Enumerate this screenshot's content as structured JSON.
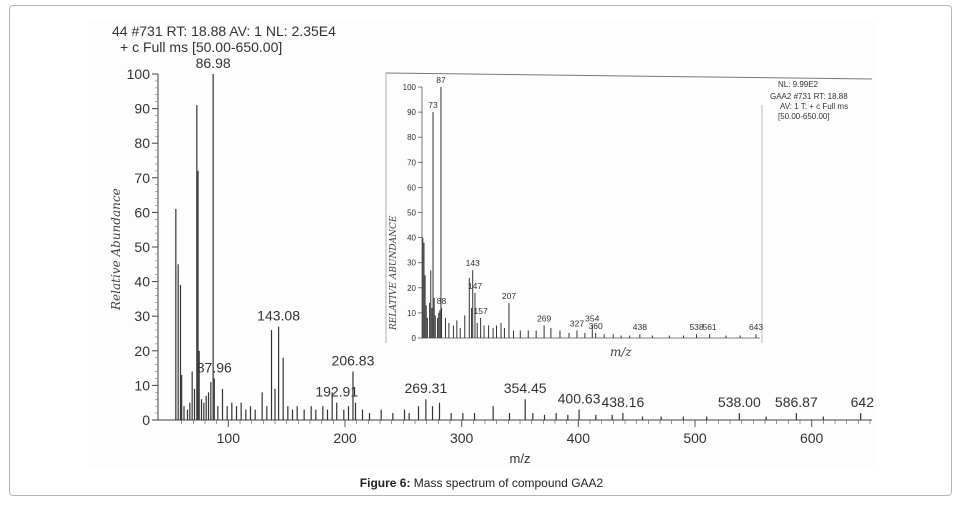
{
  "figure": {
    "caption_label": "Figure 6:",
    "caption_text": " Mass spectrum of compound GAA2"
  },
  "chart_data": [
    {
      "type": "bar",
      "header_line1": "44 #731   RT: 18.88   AV: 1   NL: 2.35E4",
      "header_line2": "+ c Full ms [50.00-650.00]",
      "xlabel": "m/z",
      "ylabel": "Relative Abundance",
      "xlim": [
        50,
        650
      ],
      "ylim": [
        0,
        100
      ],
      "xticks": [
        100,
        200,
        300,
        400,
        500,
        600
      ],
      "yticks": [
        0,
        10,
        20,
        30,
        40,
        50,
        60,
        70,
        80,
        90,
        100
      ],
      "peaks": [
        {
          "mz": 55,
          "rel": 61
        },
        {
          "mz": 57,
          "rel": 45
        },
        {
          "mz": 59,
          "rel": 39
        },
        {
          "mz": 60,
          "rel": 13
        },
        {
          "mz": 62,
          "rel": 4
        },
        {
          "mz": 65,
          "rel": 3
        },
        {
          "mz": 67,
          "rel": 5
        },
        {
          "mz": 69,
          "rel": 14
        },
        {
          "mz": 71,
          "rel": 9
        },
        {
          "mz": 73,
          "rel": 91
        },
        {
          "mz": 74,
          "rel": 72
        },
        {
          "mz": 75,
          "rel": 20
        },
        {
          "mz": 77,
          "rel": 6
        },
        {
          "mz": 79,
          "rel": 5
        },
        {
          "mz": 81,
          "rel": 7
        },
        {
          "mz": 83,
          "rel": 8
        },
        {
          "mz": 85,
          "rel": 11
        },
        {
          "mz": 86.98,
          "rel": 100
        },
        {
          "mz": 87.96,
          "rel": 12
        },
        {
          "mz": 91,
          "rel": 4
        },
        {
          "mz": 95,
          "rel": 9
        },
        {
          "mz": 99,
          "rel": 4
        },
        {
          "mz": 103,
          "rel": 5
        },
        {
          "mz": 107,
          "rel": 4
        },
        {
          "mz": 111,
          "rel": 5
        },
        {
          "mz": 115,
          "rel": 3
        },
        {
          "mz": 119,
          "rel": 4
        },
        {
          "mz": 123,
          "rel": 3
        },
        {
          "mz": 129,
          "rel": 8
        },
        {
          "mz": 133,
          "rel": 4
        },
        {
          "mz": 137,
          "rel": 26
        },
        {
          "mz": 140,
          "rel": 9
        },
        {
          "mz": 143.08,
          "rel": 27
        },
        {
          "mz": 147,
          "rel": 18
        },
        {
          "mz": 151,
          "rel": 4
        },
        {
          "mz": 155,
          "rel": 3
        },
        {
          "mz": 159,
          "rel": 4
        },
        {
          "mz": 165,
          "rel": 3
        },
        {
          "mz": 171,
          "rel": 4
        },
        {
          "mz": 175,
          "rel": 3
        },
        {
          "mz": 181,
          "rel": 4
        },
        {
          "mz": 185,
          "rel": 3
        },
        {
          "mz": 189,
          "rel": 8
        },
        {
          "mz": 192.91,
          "rel": 5
        },
        {
          "mz": 199,
          "rel": 3
        },
        {
          "mz": 203,
          "rel": 4
        },
        {
          "mz": 206.83,
          "rel": 14
        },
        {
          "mz": 209,
          "rel": 5
        },
        {
          "mz": 215,
          "rel": 3
        },
        {
          "mz": 221,
          "rel": 2
        },
        {
          "mz": 231,
          "rel": 3
        },
        {
          "mz": 241,
          "rel": 2
        },
        {
          "mz": 251,
          "rel": 3
        },
        {
          "mz": 255,
          "rel": 2
        },
        {
          "mz": 263,
          "rel": 4
        },
        {
          "mz": 269.31,
          "rel": 6
        },
        {
          "mz": 275,
          "rel": 4
        },
        {
          "mz": 281,
          "rel": 5
        },
        {
          "mz": 291,
          "rel": 2
        },
        {
          "mz": 301,
          "rel": 2
        },
        {
          "mz": 311,
          "rel": 2
        },
        {
          "mz": 327,
          "rel": 4
        },
        {
          "mz": 341,
          "rel": 2
        },
        {
          "mz": 354.45,
          "rel": 6
        },
        {
          "mz": 361,
          "rel": 2
        },
        {
          "mz": 371,
          "rel": 1.5
        },
        {
          "mz": 381,
          "rel": 2
        },
        {
          "mz": 391,
          "rel": 1.5
        },
        {
          "mz": 400.63,
          "rel": 3
        },
        {
          "mz": 415,
          "rel": 1.5
        },
        {
          "mz": 429,
          "rel": 1.5
        },
        {
          "mz": 438.16,
          "rel": 2
        },
        {
          "mz": 455,
          "rel": 1
        },
        {
          "mz": 471,
          "rel": 1
        },
        {
          "mz": 490,
          "rel": 1
        },
        {
          "mz": 510,
          "rel": 1
        },
        {
          "mz": 538.0,
          "rel": 2
        },
        {
          "mz": 561,
          "rel": 1
        },
        {
          "mz": 586.87,
          "rel": 2
        },
        {
          "mz": 610,
          "rel": 1
        },
        {
          "mz": 642,
          "rel": 2
        }
      ],
      "annotations": [
        {
          "mz": 86.98,
          "rel": 100,
          "label": "86.98"
        },
        {
          "mz": 87.96,
          "rel": 12,
          "label": "87.96"
        },
        {
          "mz": 143.08,
          "rel": 27,
          "label": "143.08"
        },
        {
          "mz": 192.91,
          "rel": 5,
          "label": "192.91"
        },
        {
          "mz": 206.83,
          "rel": 14,
          "label": "206.83"
        },
        {
          "mz": 269.31,
          "rel": 6,
          "label": "269.31"
        },
        {
          "mz": 354.45,
          "rel": 6,
          "label": "354.45"
        },
        {
          "mz": 400.63,
          "rel": 3,
          "label": "400.63"
        },
        {
          "mz": 438.16,
          "rel": 2,
          "label": "438.16"
        },
        {
          "mz": 538.0,
          "rel": 2,
          "label": "538.00"
        },
        {
          "mz": 586.87,
          "rel": 2,
          "label": "586.87"
        },
        {
          "mz": 642,
          "rel": 2,
          "label": "642"
        }
      ]
    },
    {
      "type": "bar",
      "header_line1": "NL: 9.99E2",
      "header_line2": "GAA2 #731  RT: 18.88",
      "header_line3": "AV: 1 T: + c Full ms",
      "header_line4": "[50.00-650.00]",
      "xlabel": "m/z",
      "ylabel": "RELATIVE ABUNDANCE",
      "xlim": [
        50,
        650
      ],
      "ylim": [
        0,
        100
      ],
      "yticks": [
        0,
        10,
        20,
        30,
        40,
        50,
        60,
        70,
        80,
        90,
        100
      ],
      "peaks": [
        {
          "mz": 55,
          "rel": 40
        },
        {
          "mz": 57,
          "rel": 38
        },
        {
          "mz": 59,
          "rel": 25
        },
        {
          "mz": 61,
          "rel": 13
        },
        {
          "mz": 63,
          "rel": 8
        },
        {
          "mz": 67,
          "rel": 14
        },
        {
          "mz": 69,
          "rel": 27
        },
        {
          "mz": 71,
          "rel": 12
        },
        {
          "mz": 73,
          "rel": 90
        },
        {
          "mz": 75,
          "rel": 16
        },
        {
          "mz": 77,
          "rel": 9
        },
        {
          "mz": 81,
          "rel": 8
        },
        {
          "mz": 83,
          "rel": 10
        },
        {
          "mz": 85,
          "rel": 11
        },
        {
          "mz": 87,
          "rel": 100
        },
        {
          "mz": 88,
          "rel": 12
        },
        {
          "mz": 95,
          "rel": 8
        },
        {
          "mz": 101,
          "rel": 6
        },
        {
          "mz": 109,
          "rel": 5
        },
        {
          "mz": 115,
          "rel": 7
        },
        {
          "mz": 121,
          "rel": 4
        },
        {
          "mz": 129,
          "rel": 9
        },
        {
          "mz": 137,
          "rel": 24
        },
        {
          "mz": 141,
          "rel": 12
        },
        {
          "mz": 143,
          "rel": 27
        },
        {
          "mz": 147,
          "rel": 18
        },
        {
          "mz": 151,
          "rel": 6
        },
        {
          "mz": 157,
          "rel": 8
        },
        {
          "mz": 163,
          "rel": 5
        },
        {
          "mz": 171,
          "rel": 5
        },
        {
          "mz": 179,
          "rel": 4
        },
        {
          "mz": 185,
          "rel": 5
        },
        {
          "mz": 193,
          "rel": 6
        },
        {
          "mz": 199,
          "rel": 4
        },
        {
          "mz": 207,
          "rel": 14
        },
        {
          "mz": 215,
          "rel": 3
        },
        {
          "mz": 227,
          "rel": 3
        },
        {
          "mz": 241,
          "rel": 3
        },
        {
          "mz": 255,
          "rel": 3
        },
        {
          "mz": 269,
          "rel": 5
        },
        {
          "mz": 281,
          "rel": 4
        },
        {
          "mz": 297,
          "rel": 3
        },
        {
          "mz": 313,
          "rel": 2
        },
        {
          "mz": 327,
          "rel": 3
        },
        {
          "mz": 341,
          "rel": 2
        },
        {
          "mz": 354,
          "rel": 5
        },
        {
          "mz": 360,
          "rel": 2
        },
        {
          "mz": 375,
          "rel": 1.5
        },
        {
          "mz": 391,
          "rel": 1.5
        },
        {
          "mz": 405,
          "rel": 1
        },
        {
          "mz": 420,
          "rel": 1
        },
        {
          "mz": 438,
          "rel": 1.5
        },
        {
          "mz": 460,
          "rel": 1
        },
        {
          "mz": 490,
          "rel": 1
        },
        {
          "mz": 515,
          "rel": 1
        },
        {
          "mz": 538,
          "rel": 1.5
        },
        {
          "mz": 561,
          "rel": 1.5
        },
        {
          "mz": 590,
          "rel": 1
        },
        {
          "mz": 615,
          "rel": 1
        },
        {
          "mz": 643,
          "rel": 1.5
        }
      ],
      "annotations": [
        {
          "mz": 73,
          "rel": 90,
          "label": "73"
        },
        {
          "mz": 87,
          "rel": 100,
          "label": "87"
        },
        {
          "mz": 88,
          "rel": 12,
          "label": "88"
        },
        {
          "mz": 143,
          "rel": 27,
          "label": "143"
        },
        {
          "mz": 147,
          "rel": 18,
          "label": "147"
        },
        {
          "mz": 157,
          "rel": 8,
          "label": "157"
        },
        {
          "mz": 207,
          "rel": 14,
          "label": "207"
        },
        {
          "mz": 269,
          "rel": 5,
          "label": "269"
        },
        {
          "mz": 327,
          "rel": 3,
          "label": "327"
        },
        {
          "mz": 354,
          "rel": 5,
          "label": "354"
        },
        {
          "mz": 360,
          "rel": 2,
          "label": "360"
        },
        {
          "mz": 438,
          "rel": 1.5,
          "label": "438"
        },
        {
          "mz": 538,
          "rel": 1.5,
          "label": "538"
        },
        {
          "mz": 561,
          "rel": 1.5,
          "label": "561"
        },
        {
          "mz": 643,
          "rel": 1.5,
          "label": "643"
        }
      ]
    }
  ]
}
